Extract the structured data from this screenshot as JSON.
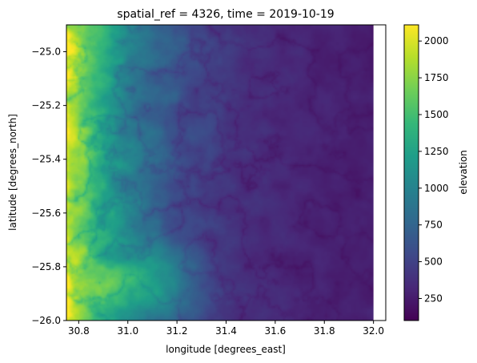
{
  "chart_data": {
    "type": "heatmap",
    "title": "spatial_ref = 4326, time = 2019-10-19",
    "xlabel": "longitude [degrees_east]",
    "ylabel": "latitude [degrees_north]",
    "xlim": [
      30.75,
      32.05
    ],
    "ylim": [
      -26.0,
      -24.9
    ],
    "data_extent": {
      "x": [
        30.75,
        32.0
      ],
      "y": [
        -26.0,
        -24.9
      ]
    },
    "x_ticks": [
      30.8,
      31.0,
      31.2,
      31.4,
      31.6,
      31.8,
      32.0
    ],
    "x_tick_labels": [
      "30.8",
      "31.0",
      "31.2",
      "31.4",
      "31.6",
      "31.8",
      "32.0"
    ],
    "y_ticks": [
      -25.0,
      -25.2,
      -25.4,
      -25.6,
      -25.8,
      -26.0
    ],
    "y_tick_labels": [
      "−25.0",
      "−25.2",
      "−25.4",
      "−25.6",
      "−25.8",
      "−26.0"
    ],
    "colorbar": {
      "label": "elevation",
      "range": [
        100,
        2110
      ],
      "ticks": [
        250,
        500,
        750,
        1000,
        1250,
        1500,
        1750,
        2000
      ],
      "tick_labels": [
        "250",
        "500",
        "750",
        "1000",
        "1250",
        "1500",
        "1750",
        "2000"
      ],
      "colormap": "viridis"
    },
    "colormap_stops": [
      "#440154",
      "#482878",
      "#3e4989",
      "#31688e",
      "#26828e",
      "#1f9e89",
      "#35b779",
      "#6ece58",
      "#b5de2b",
      "#fde725"
    ],
    "grid": false
  }
}
